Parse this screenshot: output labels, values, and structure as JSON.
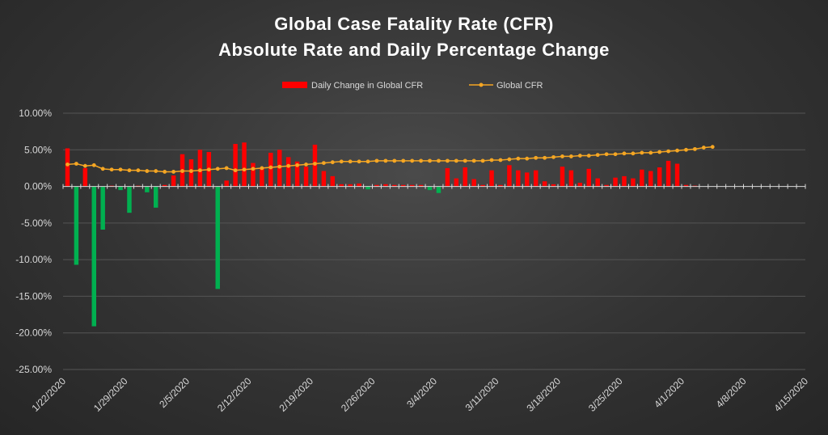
{
  "chart_data": {
    "type": "bar+line",
    "title_line1": "Global Case Fatality Rate (CFR)",
    "title_line2": "Absolute Rate and Daily Percentage Change",
    "legend": [
      {
        "name": "Daily Change in Global CFR",
        "color": "#ff0000",
        "marker": "bar"
      },
      {
        "name": "Global CFR",
        "color": "#f5a623",
        "marker": "line-dot"
      }
    ],
    "ylim": [
      -25,
      10
    ],
    "y_ticks": [
      10,
      5,
      0,
      -5,
      -10,
      -15,
      -20,
      -25
    ],
    "y_tick_labels": [
      "10.00%",
      "5.00%",
      "0.00%",
      "-5.00%",
      "-10.00%",
      "-15.00%",
      "-20.00%",
      "-25.00%"
    ],
    "x_start": "1/22/2020",
    "x_labels": [
      "1/22/2020",
      "1/29/2020",
      "2/5/2020",
      "2/12/2020",
      "2/19/2020",
      "2/26/2020",
      "3/4/2020",
      "3/11/2020",
      "3/18/2020",
      "3/25/2020",
      "4/1/2020",
      "4/8/2020",
      "4/15/2020"
    ],
    "colors": {
      "positive_bar": "#ff0000",
      "negative_bar": "#00b050",
      "line": "#f5a623",
      "grid": "#555555",
      "axis": "#d9d9d9"
    },
    "series": [
      {
        "name": "Daily Change in Global CFR",
        "dates": [
          "1/22",
          "1/23",
          "1/24",
          "1/25",
          "1/26",
          "1/27",
          "1/28",
          "1/29",
          "1/30",
          "1/31",
          "2/1",
          "2/2",
          "2/3",
          "2/4",
          "2/5",
          "2/6",
          "2/7",
          "2/8",
          "2/9",
          "2/10",
          "2/11",
          "2/12",
          "2/13",
          "2/14",
          "2/15",
          "2/16",
          "2/17",
          "2/18",
          "2/19",
          "2/20",
          "2/21",
          "2/22",
          "2/23",
          "2/24",
          "2/25",
          "2/26",
          "2/27",
          "2/28",
          "2/29",
          "3/1",
          "3/2",
          "3/3",
          "3/4",
          "3/5",
          "3/6",
          "3/7",
          "3/8",
          "3/9",
          "3/10",
          "3/11",
          "3/12",
          "3/13",
          "3/14",
          "3/15",
          "3/16",
          "3/17",
          "3/18",
          "3/19",
          "3/20",
          "3/21",
          "3/22",
          "3/23",
          "3/24",
          "3/25",
          "3/26",
          "3/27",
          "3/28",
          "3/29",
          "3/30",
          "3/31",
          "4/1",
          "4/2"
        ],
        "values": [
          5.2,
          -10.7,
          2.5,
          -19.1,
          -5.9,
          0.1,
          -0.5,
          -3.6,
          0.1,
          -0.8,
          -2.9,
          0.2,
          1.5,
          4.4,
          3.7,
          5.0,
          4.7,
          -14.0,
          0.8,
          5.8,
          6.0,
          3.2,
          2.5,
          4.6,
          5.0,
          4.0,
          3.4,
          2.7,
          5.7,
          2.1,
          1.4,
          0.3,
          0.3,
          0.4,
          -0.4,
          0.2,
          0.3,
          0.2,
          0.2,
          0.2,
          0.2,
          -0.5,
          -0.9,
          2.5,
          1.1,
          2.6,
          1.0,
          0.2,
          2.2,
          0.2,
          2.9,
          2.2,
          1.9,
          2.2,
          0.7,
          0.3,
          2.7,
          2.2,
          0.5,
          2.4,
          1.1,
          0.2,
          1.2,
          1.4,
          1.1,
          2.3,
          2.1,
          2.6,
          3.5,
          3.1,
          0.2,
          0.1
        ]
      },
      {
        "name": "Global CFR",
        "dates": [
          "1/22",
          "1/23",
          "1/24",
          "1/25",
          "1/26",
          "1/27",
          "1/28",
          "1/29",
          "1/30",
          "1/31",
          "2/1",
          "2/2",
          "2/3",
          "2/4",
          "2/5",
          "2/6",
          "2/7",
          "2/8",
          "2/9",
          "2/10",
          "2/11",
          "2/12",
          "2/13",
          "2/14",
          "2/15",
          "2/16",
          "2/17",
          "2/18",
          "2/19",
          "2/20",
          "2/21",
          "2/22",
          "2/23",
          "2/24",
          "2/25",
          "2/26",
          "2/27",
          "2/28",
          "2/29",
          "3/1",
          "3/2",
          "3/3",
          "3/4",
          "3/5",
          "3/6",
          "3/7",
          "3/8",
          "3/9",
          "3/10",
          "3/11",
          "3/12",
          "3/13",
          "3/14",
          "3/15",
          "3/16",
          "3/17",
          "3/18",
          "3/19",
          "3/20",
          "3/21",
          "3/22",
          "3/23",
          "3/24",
          "3/25",
          "3/26",
          "3/27",
          "3/28",
          "3/29",
          "3/30",
          "3/31",
          "4/1",
          "4/2",
          "4/3",
          "4/4"
        ],
        "values": [
          3.0,
          3.1,
          2.8,
          2.9,
          2.4,
          2.3,
          2.3,
          2.2,
          2.2,
          2.1,
          2.1,
          2.0,
          2.0,
          2.1,
          2.1,
          2.2,
          2.3,
          2.4,
          2.5,
          2.2,
          2.3,
          2.4,
          2.5,
          2.6,
          2.7,
          2.8,
          2.9,
          3.0,
          3.1,
          3.2,
          3.3,
          3.4,
          3.4,
          3.4,
          3.4,
          3.5,
          3.5,
          3.5,
          3.5,
          3.5,
          3.5,
          3.5,
          3.5,
          3.5,
          3.5,
          3.5,
          3.5,
          3.5,
          3.6,
          3.6,
          3.7,
          3.8,
          3.8,
          3.9,
          3.9,
          4.0,
          4.1,
          4.1,
          4.2,
          4.2,
          4.3,
          4.4,
          4.4,
          4.5,
          4.5,
          4.6,
          4.6,
          4.7,
          4.8,
          4.9,
          5.0,
          5.1,
          5.3,
          5.4
        ]
      }
    ]
  }
}
